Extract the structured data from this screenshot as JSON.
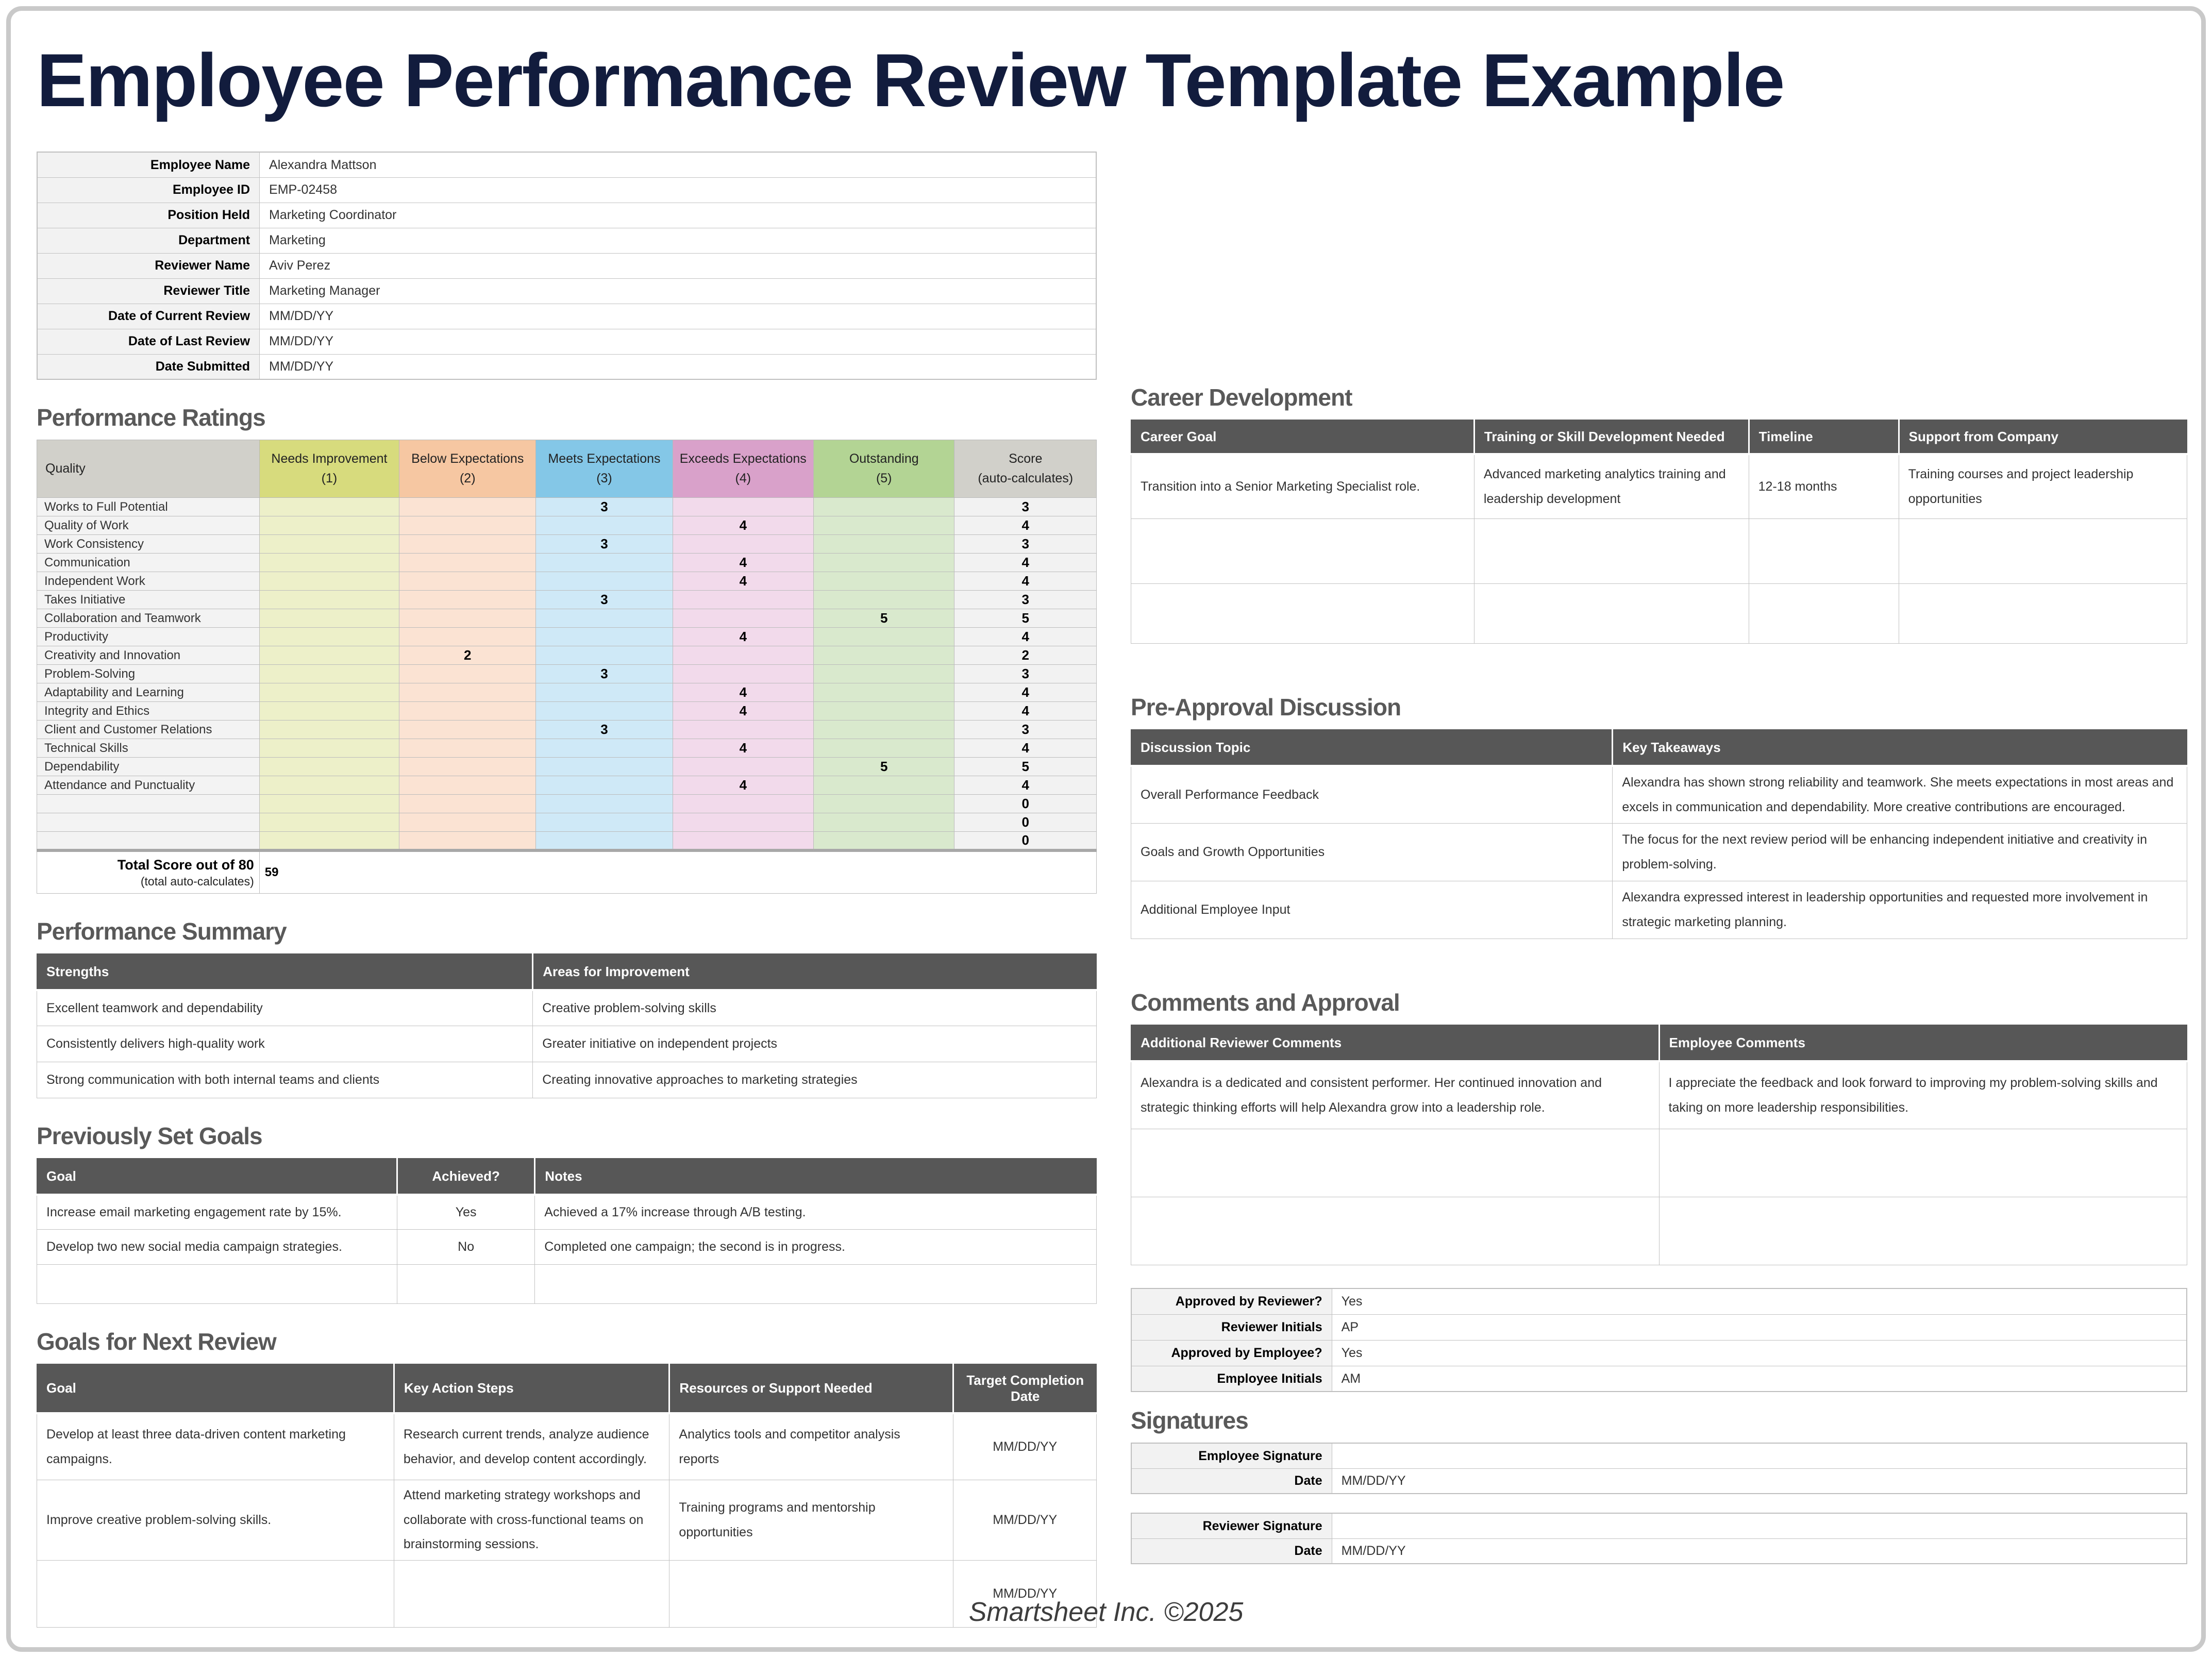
{
  "page": {
    "title": "Employee Performance Review Template Example",
    "footer": "Smartsheet Inc. ©2025"
  },
  "colors": {
    "title_text": "#121c3d",
    "section_title_text": "#595959",
    "table_header_bg": "#575757",
    "label_bg": "#f2f2f2",
    "needs_improvement_header": "#d7db7d",
    "below_expectations_header": "#f6c7a2",
    "meets_expectations_header": "#84c7e7",
    "exceeds_expectations_header": "#d9a1ca",
    "outstanding_header": "#b3d494",
    "score_header": "#d1d0ca",
    "needs_improvement_cell": "#edf0c9",
    "below_expectations_cell": "#fbe3d3",
    "meets_expectations_cell": "#cfe9f7",
    "exceeds_expectations_cell": "#f2daeb",
    "outstanding_cell": "#d9e9cd",
    "score_cell": "#f2f2f2"
  },
  "employee_info": {
    "rows": [
      [
        "Employee Name",
        "Alexandra Mattson"
      ],
      [
        "Employee ID",
        "EMP-02458"
      ],
      [
        "Position Held",
        "Marketing Coordinator"
      ],
      [
        "Department",
        "Marketing"
      ],
      [
        "Reviewer Name",
        "Aviv Perez"
      ],
      [
        "Reviewer Title",
        "Marketing Manager"
      ],
      [
        "Date of Current Review",
        "MM/DD/YY"
      ],
      [
        "Date of Last Review",
        "MM/DD/YY"
      ],
      [
        "Date Submitted",
        "MM/DD/YY"
      ]
    ]
  },
  "performance_ratings": {
    "title": "Performance Ratings",
    "columns": [
      {
        "label": "Quality",
        "sub": ""
      },
      {
        "label": "Needs Improvement",
        "sub": "(1)"
      },
      {
        "label": "Below Expectations",
        "sub": "(2)"
      },
      {
        "label": "Meets Expectations",
        "sub": "(3)"
      },
      {
        "label": "Exceeds Expectations",
        "sub": "(4)"
      },
      {
        "label": "Outstanding",
        "sub": "(5)"
      },
      {
        "label": "Score",
        "sub": "(auto-calculates)"
      }
    ],
    "rows": [
      {
        "quality": "Works to Full Potential",
        "level": 3,
        "score": "3"
      },
      {
        "quality": "Quality of Work",
        "level": 4,
        "score": "4"
      },
      {
        "quality": "Work Consistency",
        "level": 3,
        "score": "3"
      },
      {
        "quality": "Communication",
        "level": 4,
        "score": "4"
      },
      {
        "quality": "Independent Work",
        "level": 4,
        "score": "4"
      },
      {
        "quality": "Takes Initiative",
        "level": 3,
        "score": "3"
      },
      {
        "quality": "Collaboration and Teamwork",
        "level": 5,
        "score": "5"
      },
      {
        "quality": "Productivity",
        "level": 4,
        "score": "4"
      },
      {
        "quality": "Creativity and Innovation",
        "level": 2,
        "score": "2"
      },
      {
        "quality": "Problem-Solving",
        "level": 3,
        "score": "3"
      },
      {
        "quality": "Adaptability and Learning",
        "level": 4,
        "score": "4"
      },
      {
        "quality": "Integrity and Ethics",
        "level": 4,
        "score": "4"
      },
      {
        "quality": "Client and Customer Relations",
        "level": 3,
        "score": "3"
      },
      {
        "quality": "Technical Skills",
        "level": 4,
        "score": "4"
      },
      {
        "quality": "Dependability",
        "level": 5,
        "score": "5"
      },
      {
        "quality": "Attendance and Punctuality",
        "level": 4,
        "score": "4"
      },
      {
        "quality": "",
        "level": 0,
        "score": "0"
      },
      {
        "quality": "",
        "level": 0,
        "score": "0"
      },
      {
        "quality": "",
        "level": 0,
        "score": "0"
      }
    ],
    "total_label": "Total Score out of 80",
    "total_sublabel": "(total auto-calculates)",
    "total_value": "59"
  },
  "performance_summary": {
    "title": "Performance Summary",
    "headers": [
      "Strengths",
      "Areas for Improvement"
    ],
    "rows": [
      [
        "Excellent teamwork and dependability",
        "Creative problem-solving skills"
      ],
      [
        "Consistently delivers high-quality work",
        "Greater initiative on independent projects"
      ],
      [
        "Strong communication with both internal teams and clients",
        "Creating innovative approaches to marketing strategies"
      ]
    ]
  },
  "previously_set_goals": {
    "title": "Previously Set Goals",
    "headers": [
      "Goal",
      "Achieved?",
      "Notes"
    ],
    "rows": [
      [
        "Increase email marketing engagement rate by 15%.",
        "Yes",
        "Achieved a 17% increase through A/B testing."
      ],
      [
        "Develop two new social media campaign strategies.",
        "No",
        "Completed one campaign; the second is in progress."
      ],
      [
        "",
        "",
        ""
      ]
    ]
  },
  "goals_for_next_review": {
    "title": "Goals for Next Review",
    "headers": [
      "Goal",
      "Key Action Steps",
      "Resources or Support Needed",
      "Target Completion Date"
    ],
    "rows": [
      [
        "Develop at least three data-driven content marketing campaigns.",
        "Research current trends, analyze audience behavior, and develop content accordingly.",
        "Analytics tools and competitor analysis reports",
        "MM/DD/YY"
      ],
      [
        "Improve creative problem-solving skills.",
        "Attend marketing strategy workshops and collaborate with cross-functional teams on brainstorming sessions.",
        "Training programs and mentorship opportunities",
        "MM/DD/YY"
      ],
      [
        "",
        "",
        "",
        "MM/DD/YY"
      ]
    ]
  },
  "career_development": {
    "title": "Career Development",
    "headers": [
      "Career Goal",
      "Training or Skill Development Needed",
      "Timeline",
      "Support from Company"
    ],
    "rows": [
      [
        "Transition into a Senior Marketing Specialist role.",
        "Advanced marketing analytics training and leadership development",
        "12-18 months",
        "Training courses and project leadership opportunities"
      ],
      [
        "",
        "",
        "",
        ""
      ],
      [
        "",
        "",
        "",
        ""
      ]
    ]
  },
  "pre_approval_discussion": {
    "title": "Pre-Approval Discussion",
    "headers": [
      "Discussion Topic",
      "Key Takeaways"
    ],
    "rows": [
      [
        "Overall Performance Feedback",
        "Alexandra has shown strong reliability and teamwork. She meets expectations in most areas and excels in communication and dependability. More creative contributions are encouraged."
      ],
      [
        "Goals and Growth Opportunities",
        "The focus for the next review period will be enhancing independent initiative and creativity in problem-solving."
      ],
      [
        "Additional Employee Input",
        "Alexandra expressed interest in leadership opportunities and requested more involvement in strategic marketing planning."
      ]
    ]
  },
  "comments_and_approval": {
    "title": "Comments and Approval",
    "headers": [
      "Additional Reviewer Comments",
      "Employee Comments"
    ],
    "rows": [
      [
        "Alexandra is a dedicated and consistent performer. Her continued innovation and strategic thinking efforts will help Alexandra grow into a leadership role.",
        "I appreciate the feedback and look forward to improving my problem-solving skills and taking on more leadership responsibilities."
      ],
      [
        "",
        ""
      ],
      [
        "",
        ""
      ]
    ]
  },
  "approvals": {
    "rows": [
      [
        "Approved by Reviewer?",
        "Yes"
      ],
      [
        "Reviewer Initials",
        "AP"
      ],
      [
        "Approved by Employee?",
        "Yes"
      ],
      [
        "Employee Initials",
        "AM"
      ]
    ]
  },
  "signatures": {
    "title": "Signatures",
    "blocks": [
      {
        "rows": [
          [
            "Employee Signature",
            ""
          ],
          [
            "Date",
            "MM/DD/YY"
          ]
        ]
      },
      {
        "rows": [
          [
            "Reviewer Signature",
            ""
          ],
          [
            "Date",
            "MM/DD/YY"
          ]
        ]
      }
    ]
  }
}
